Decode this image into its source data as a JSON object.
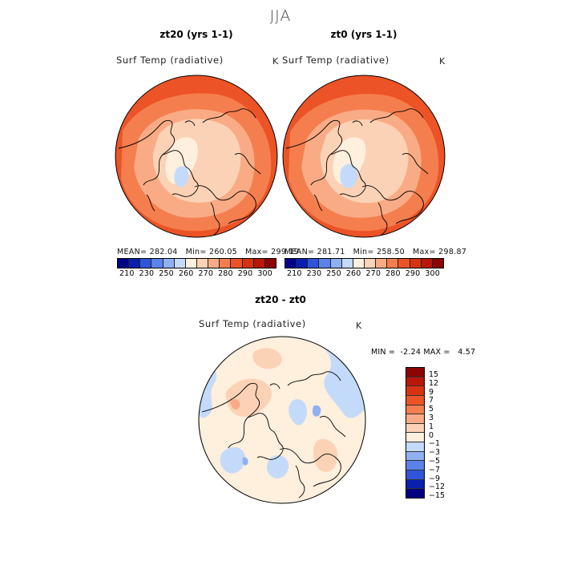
{
  "title": "JJA",
  "panels": [
    {
      "title": "zt20 (yrs 1-1)",
      "field": "Surf Temp (radiative)",
      "unit": "K",
      "mean": "282.04",
      "min": "260.05",
      "max": "299.19"
    },
    {
      "title": "zt0 (yrs 1-1)",
      "field": "Surf Temp (radiative)",
      "unit": "K",
      "mean": "281.71",
      "min": "258.50",
      "max": "298.87"
    }
  ],
  "diff_panel": {
    "title": "zt20 - zt0",
    "field": "Surf Temp (radiative)",
    "unit": "K",
    "min": "-2.24",
    "max": "4.57"
  },
  "labels": {
    "mean": "MEAN=",
    "min": "Min=",
    "max": "Max=",
    "min_upper": "MIN =",
    "max_upper": "MAX ="
  },
  "colorbar_top": {
    "colors": [
      "#00008b",
      "#0a1fb0",
      "#2f55d9",
      "#5a82ea",
      "#8fb0f3",
      "#c4dafa",
      "#ffefdd",
      "#fcd2b6",
      "#f9ab85",
      "#f57e4e",
      "#ec5326",
      "#d73211",
      "#b8170a",
      "#8c0404"
    ],
    "ticks": [
      "210",
      "230",
      "250",
      "260",
      "270",
      "280",
      "290",
      "300"
    ]
  },
  "colorbar_diff": {
    "colors": [
      "#8c0404",
      "#b8170a",
      "#d73211",
      "#ec5326",
      "#f57e4e",
      "#f9ab85",
      "#fcd2b6",
      "#ffefdd",
      "#c4dafa",
      "#8fb0f3",
      "#5a82ea",
      "#2f55d9",
      "#0a1fb0",
      "#000080"
    ],
    "ticks": [
      "15",
      "12",
      "9",
      "7",
      "5",
      "3",
      "1",
      "0",
      "−1",
      "−3",
      "−5",
      "−7",
      "−9",
      "−12",
      "−15"
    ]
  },
  "map_colors": {
    "outer": "#ec5326",
    "mid": "#f57e4e",
    "inner": "#f9ab85",
    "arctic": "#fcd2b6",
    "ice": "#ffefdd",
    "cold": "#c4dafa",
    "diff_bg": "#ffefdd",
    "diff_pos": "#fcd2b6",
    "diff_pos2": "#f9ab85",
    "diff_neg": "#c4dafa",
    "diff_neg2": "#8fb0f3"
  }
}
